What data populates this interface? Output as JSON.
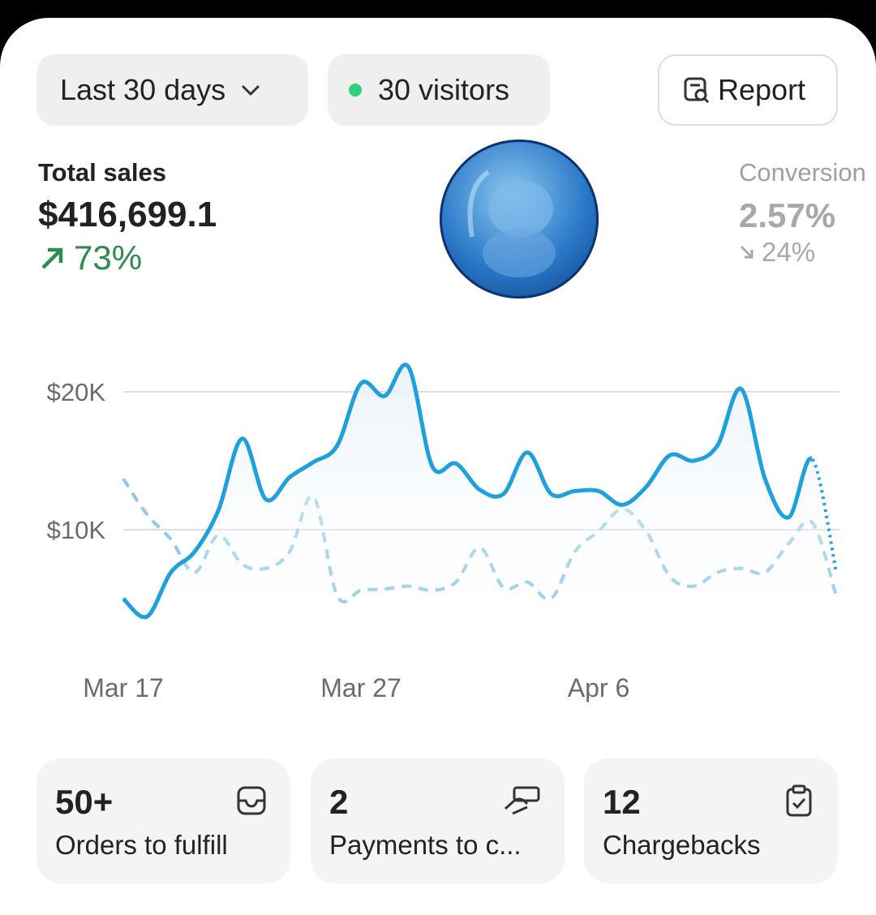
{
  "toolbar": {
    "range": "Last 30 days",
    "visitors": "30 visitors",
    "report": "Report"
  },
  "metrics": [
    {
      "label": "Total sales",
      "value": "$416,699.1",
      "change": "73%"
    },
    {
      "label": "Conversion",
      "value": "2.57%",
      "change": "24%"
    }
  ],
  "chart_data": {
    "type": "line",
    "categories": [
      "Mar 17",
      null,
      null,
      null,
      null,
      null,
      null,
      null,
      null,
      null,
      "Mar 27",
      null,
      null,
      null,
      null,
      null,
      null,
      null,
      null,
      null,
      "Apr 6",
      null,
      null,
      null,
      null,
      null,
      null,
      null,
      null,
      null,
      null
    ],
    "series": [
      {
        "color": "#1ea0dc",
        "values": [
          5000,
          3700,
          6900,
          8400,
          11400,
          16600,
          12200,
          13800,
          14900,
          16100,
          20600,
          19700,
          21800,
          14600,
          14800,
          12900,
          12600,
          15600,
          12600,
          12800,
          12800,
          11800,
          13100,
          15400,
          15000,
          16100,
          20200,
          13700,
          10900,
          15100,
          6900
        ]
      },
      {
        "color": "#8ccbe6",
        "values": [
          13700,
          11100,
          9300,
          6900,
          9600,
          7500,
          7200,
          8400,
          12400,
          5200,
          5600,
          5700,
          5900,
          5600,
          6200,
          8700,
          5800,
          6200,
          5000,
          8400,
          9900,
          11500,
          9900,
          6600,
          5900,
          6900,
          7200,
          6900,
          9000,
          10500,
          5200
        ]
      }
    ],
    "ylim": [
      0,
      25000
    ],
    "yticks": [
      {
        "value": 10000,
        "label": "$10K"
      },
      {
        "value": 20000,
        "label": "$20K"
      }
    ],
    "grid": true
  },
  "cards": [
    {
      "count": "50+",
      "label": "Orders to fulfill"
    },
    {
      "count": "2",
      "label": "Payments to c..."
    },
    {
      "count": "12",
      "label": "Chargebacks"
    }
  ]
}
